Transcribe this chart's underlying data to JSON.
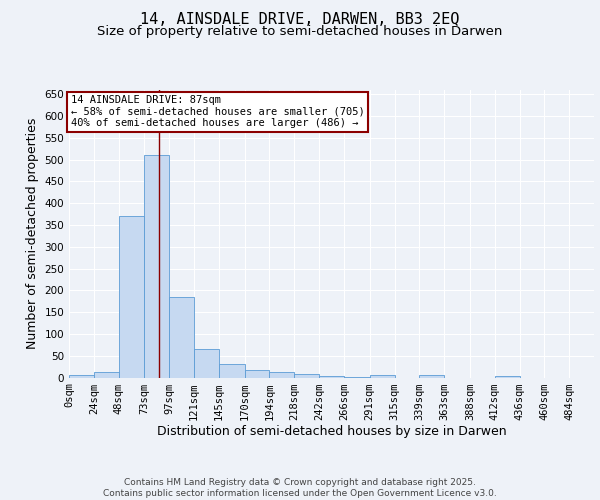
{
  "title": "14, AINSDALE DRIVE, DARWEN, BB3 2EQ",
  "subtitle": "Size of property relative to semi-detached houses in Darwen",
  "xlabel": "Distribution of semi-detached houses by size in Darwen",
  "ylabel": "Number of semi-detached properties",
  "bin_labels": [
    "0sqm",
    "24sqm",
    "48sqm",
    "73sqm",
    "97sqm",
    "121sqm",
    "145sqm",
    "170sqm",
    "194sqm",
    "218sqm",
    "242sqm",
    "266sqm",
    "291sqm",
    "315sqm",
    "339sqm",
    "363sqm",
    "388sqm",
    "412sqm",
    "436sqm",
    "460sqm",
    "484sqm"
  ],
  "bin_edges": [
    0,
    24,
    48,
    73,
    97,
    121,
    145,
    170,
    194,
    218,
    242,
    266,
    291,
    315,
    339,
    363,
    388,
    412,
    436,
    460,
    484
  ],
  "bar_heights": [
    5,
    13,
    370,
    510,
    185,
    65,
    30,
    18,
    12,
    8,
    4,
    2,
    5,
    0,
    5,
    0,
    0,
    4,
    0,
    0,
    0
  ],
  "bar_color": "#c6d9f1",
  "bar_edge_color": "#5b9bd5",
  "vline_x": 87,
  "vline_color": "#8b0000",
  "annotation_line1": "14 AINSDALE DRIVE: 87sqm",
  "annotation_line2": "← 58% of semi-detached houses are smaller (705)",
  "annotation_line3": "40% of semi-detached houses are larger (486) →",
  "annotation_box_color": "#8b0000",
  "ylim": [
    0,
    660
  ],
  "yticks": [
    0,
    50,
    100,
    150,
    200,
    250,
    300,
    350,
    400,
    450,
    500,
    550,
    600,
    650
  ],
  "background_color": "#eef2f8",
  "footer_text": "Contains HM Land Registry data © Crown copyright and database right 2025.\nContains public sector information licensed under the Open Government Licence v3.0.",
  "title_fontsize": 11,
  "subtitle_fontsize": 9.5,
  "axis_label_fontsize": 9,
  "tick_fontsize": 7.5,
  "annotation_fontsize": 7.5,
  "footer_fontsize": 6.5
}
